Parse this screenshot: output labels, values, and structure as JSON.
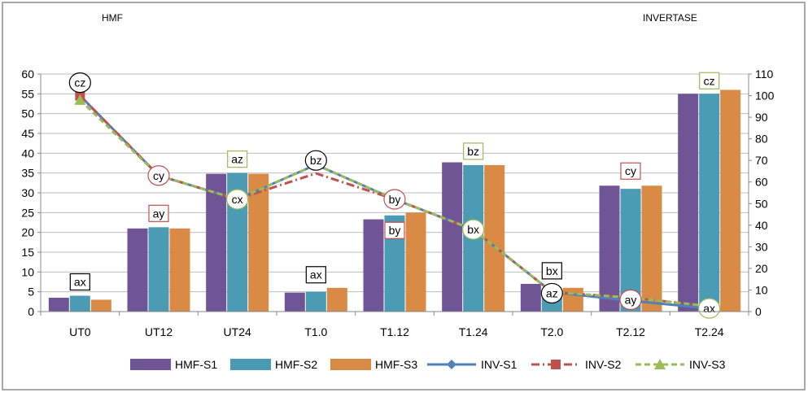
{
  "chart_data": {
    "type": "bar",
    "left_axis_title": "HMF",
    "right_axis_title": "INVERTASE",
    "categories": [
      "UT0",
      "UT12",
      "UT24",
      "T1.0",
      "T1.12",
      "T1.24",
      "T2.0",
      "T2.12",
      "T2.24"
    ],
    "ylim_left": [
      0,
      60
    ],
    "yticks_left": [
      0,
      5,
      10,
      15,
      20,
      25,
      30,
      35,
      40,
      45,
      50,
      55,
      60
    ],
    "ylim_right": [
      0,
      110
    ],
    "yticks_right": [
      0,
      10,
      20,
      30,
      40,
      50,
      60,
      70,
      80,
      90,
      100,
      110
    ],
    "grid": true,
    "legend_position": "bottom",
    "bar_series": [
      {
        "name": "HMF-S1",
        "color": "#6f5596",
        "values": [
          3.5,
          21,
          34.8,
          4.8,
          23.3,
          37.7,
          7,
          31.8,
          55
        ]
      },
      {
        "name": "HMF-S2",
        "color": "#4a9bb3",
        "values": [
          4,
          21.3,
          35,
          5,
          24.3,
          37,
          5.3,
          31,
          55
        ]
      },
      {
        "name": "HMF-S3",
        "color": "#d98b45",
        "values": [
          3,
          21,
          34.8,
          6,
          25,
          37,
          6,
          31.8,
          56
        ]
      }
    ],
    "line_series": [
      {
        "name": "INV-S1",
        "color": "#4f81bd",
        "dash": "solid",
        "marker": "diamond",
        "values": [
          100,
          63,
          52,
          68,
          52,
          38,
          9,
          5,
          1.5
        ]
      },
      {
        "name": "INV-S2",
        "color": "#c0504d",
        "dash": "dashdot",
        "marker": "square",
        "values": [
          100,
          63,
          52,
          64,
          52,
          38,
          9,
          6.5,
          2.5
        ]
      },
      {
        "name": "INV-S3",
        "color": "#9bbb59",
        "dash": "dashed",
        "marker": "triangle",
        "values": [
          98,
          63,
          52,
          68,
          52,
          38,
          9,
          6.5,
          2.5
        ]
      }
    ],
    "bar_annotations": [
      {
        "text": "ax",
        "category": "UT0",
        "value": 7.5,
        "border_color": "#000000"
      },
      {
        "text": "ay",
        "category": "UT12",
        "value": 24.8,
        "border_color": "#c0504d"
      },
      {
        "text": "az",
        "category": "UT24",
        "value": 38.5,
        "border_color": "#9bbb59"
      },
      {
        "text": "ax",
        "category": "T1.0",
        "value": 9.3,
        "border_color": "#000000"
      },
      {
        "text": "by",
        "category": "T1.12",
        "value": 20.5,
        "border_color": "#c0504d"
      },
      {
        "text": "bz",
        "category": "T1.24",
        "value": 40.5,
        "border_color": "#9bbb59"
      },
      {
        "text": "bx",
        "category": "T2.0",
        "value": 10.3,
        "border_color": "#000000"
      },
      {
        "text": "cy",
        "category": "T2.12",
        "value": 35.5,
        "border_color": "#c0504d"
      },
      {
        "text": "cz",
        "category": "T2.24",
        "value": 58.3,
        "border_color": "#9bbb59"
      }
    ],
    "line_annotations": [
      {
        "text": "cz",
        "category": "UT0",
        "value": 106,
        "border_color": "#000000"
      },
      {
        "text": "cy",
        "category": "UT12",
        "value": 63,
        "border_color": "#c0504d"
      },
      {
        "text": "cx",
        "category": "UT24",
        "value": 52,
        "border_color": "#9bbb59"
      },
      {
        "text": "bz",
        "category": "T1.0",
        "value": 70,
        "border_color": "#000000"
      },
      {
        "text": "by",
        "category": "T1.12",
        "value": 52,
        "border_color": "#c0504d"
      },
      {
        "text": "bx",
        "category": "T1.24",
        "value": 38,
        "border_color": "#9bbb59"
      },
      {
        "text": "az",
        "category": "T2.0",
        "value": 8.5,
        "border_color": "#000000"
      },
      {
        "text": "ay",
        "category": "T2.12",
        "value": 5.5,
        "border_color": "#c0504d"
      },
      {
        "text": "ax",
        "category": "T2.24",
        "value": 1.5,
        "border_color": "#9bbb59"
      }
    ]
  }
}
